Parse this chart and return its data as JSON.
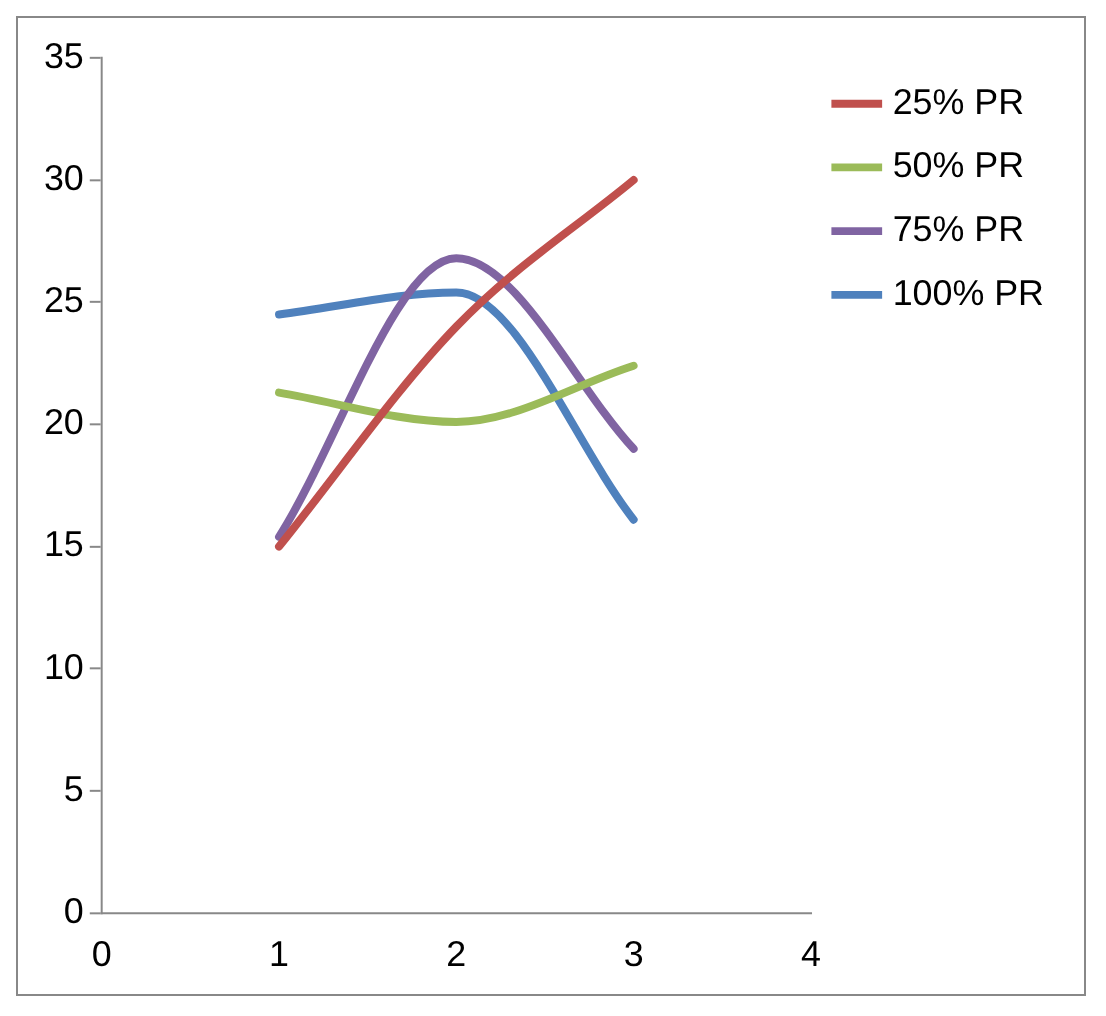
{
  "chart_data": {
    "type": "line",
    "x": [
      1,
      2,
      3
    ],
    "series": [
      {
        "name": "25% PR",
        "color": "#c0504d",
        "values": [
          15,
          24,
          30
        ]
      },
      {
        "name": "50% PR",
        "color": "#9bbb59",
        "values": [
          21.3,
          20.1,
          22.4
        ]
      },
      {
        "name": "75% PR",
        "color": "#8064a2",
        "values": [
          15.4,
          26.8,
          19
        ]
      },
      {
        "name": "100% PR",
        "color": "#4f81bd",
        "values": [
          24.5,
          25.4,
          16.1
        ]
      }
    ],
    "xlim": [
      0,
      4
    ],
    "xticks": [
      0,
      1,
      2,
      3,
      4
    ],
    "ylim": [
      0,
      35
    ],
    "yticks": [
      0,
      5,
      10,
      15,
      20,
      25,
      30,
      35
    ],
    "grid": false,
    "legend": "right",
    "marker": "none",
    "line_style": "solid"
  }
}
